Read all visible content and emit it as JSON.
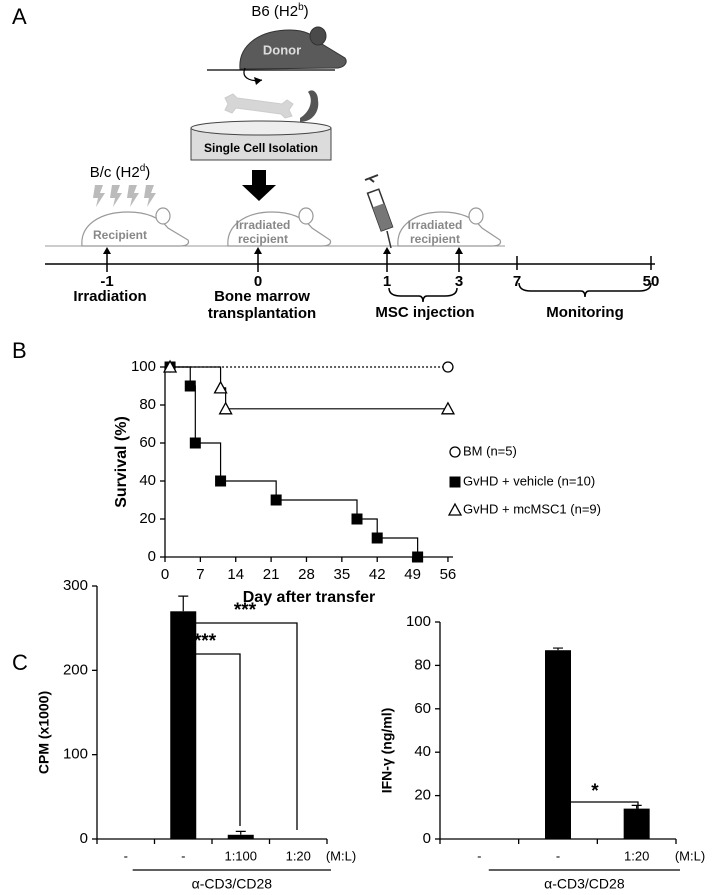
{
  "panel_labels": [
    "A",
    "B",
    "C"
  ],
  "diagram": {
    "donor_strain": {
      "text": "B6 (H2",
      "sup": "b",
      "tail": ")"
    },
    "donor": "Donor",
    "isolation": "Single Cell Isolation",
    "recipient_strain": {
      "text": "B/c (H2",
      "sup": "d",
      "tail": ")"
    },
    "recipient": "Recipient",
    "irradiated_recipient": [
      "Irradiated",
      "recipient"
    ],
    "irradiated_recipient_2": [
      "Irradiated",
      "recipient"
    ],
    "timeline_days": [
      "-1",
      "0",
      "1",
      "3",
      "7",
      "50"
    ],
    "steps": [
      [
        "Irradiation"
      ],
      [
        "Bone marrow",
        "transplantation"
      ],
      [
        "MSC injection"
      ],
      [
        "Monitoring"
      ]
    ]
  },
  "chart_data": [
    {
      "type": "survival",
      "x_label": "Day after transfer",
      "y_label": "Survival (%)",
      "xlim": [
        0,
        57
      ],
      "ylim": [
        0,
        100
      ],
      "xticks": [
        0,
        7,
        14,
        21,
        28,
        35,
        42,
        49,
        56
      ],
      "yticks": [
        0,
        20,
        40,
        60,
        80,
        100
      ],
      "series": [
        {
          "name": "BM (n=5)",
          "color": "#000000",
          "marker": "circle",
          "filled": false,
          "line_style": "dotted",
          "x": [
            1,
            56
          ],
          "values": [
            100,
            100
          ]
        },
        {
          "name": "GvHD + vehicle (n=10)",
          "color": "#000000",
          "marker": "square",
          "filled": true,
          "line_style": "solid",
          "x": [
            1,
            5,
            6,
            11,
            22,
            38,
            42,
            50
          ],
          "values": [
            100,
            90,
            60,
            40,
            30,
            20,
            10,
            0
          ]
        },
        {
          "name": "GvHD + mcMSC1 (n=9)",
          "color": "#000000",
          "marker": "triangle",
          "filled": false,
          "line_style": "solid",
          "x": [
            1,
            11,
            12,
            56
          ],
          "values": [
            100,
            89,
            78,
            78
          ]
        }
      ]
    },
    {
      "type": "bar",
      "y_label": "CPM (x1000)",
      "categories": [
        "-",
        "-",
        "1:100",
        "1:20"
      ],
      "values": [
        0,
        270,
        5,
        0
      ],
      "errors": [
        null,
        18,
        4,
        null
      ],
      "color": "#000000",
      "ylim": [
        0,
        300
      ],
      "yticks": [
        0,
        100,
        200,
        300
      ],
      "ratio_label": "(M:L)",
      "group_label": "α-CD3/CD28",
      "annotations": [
        "***",
        "***"
      ]
    },
    {
      "type": "bar",
      "y_label": "IFN-γ (ng/ml)",
      "categories": [
        "-",
        "-",
        "1:20"
      ],
      "values": [
        0,
        87,
        14
      ],
      "errors": [
        null,
        1,
        1.5
      ],
      "color": "#000000",
      "ylim": [
        0,
        100
      ],
      "yticks": [
        0,
        20,
        40,
        60,
        80,
        100
      ],
      "ratio_label": "(M:L)",
      "group_label": "α-CD3/CD28",
      "annotations": [
        "*"
      ]
    }
  ]
}
